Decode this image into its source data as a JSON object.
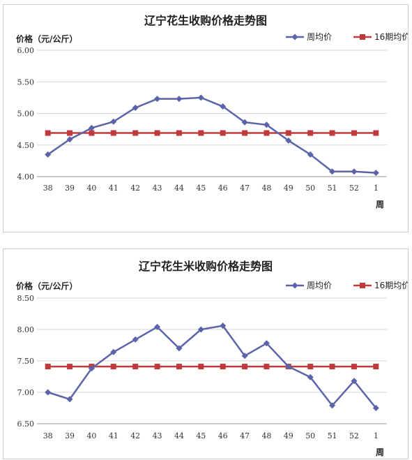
{
  "chart_data": [
    {
      "type": "line",
      "title": "辽宁花生收购价格走势图",
      "ylabel": "价格（元/公斤）",
      "xlabel": "周",
      "categories": [
        "38",
        "39",
        "40",
        "41",
        "42",
        "43",
        "44",
        "45",
        "46",
        "47",
        "48",
        "49",
        "50",
        "51",
        "52",
        "1"
      ],
      "ylim": [
        4.0,
        6.0
      ],
      "yticks": [
        "4.00",
        "4.50",
        "5.00",
        "5.50",
        "6.00"
      ],
      "grid": true,
      "legend_position": "top-right",
      "series": [
        {
          "name": "周均价",
          "color": "#5b64a8",
          "marker": "diamond",
          "values": [
            4.35,
            4.59,
            4.77,
            4.87,
            5.09,
            5.23,
            5.23,
            5.25,
            5.11,
            4.86,
            4.82,
            4.57,
            4.35,
            4.08,
            4.08,
            4.06
          ]
        },
        {
          "name": "16期均价",
          "color": "#c0393b",
          "marker": "square",
          "values": [
            4.69,
            4.69,
            4.69,
            4.69,
            4.69,
            4.69,
            4.69,
            4.69,
            4.69,
            4.69,
            4.69,
            4.69,
            4.69,
            4.69,
            4.69,
            4.69
          ]
        }
      ]
    },
    {
      "type": "line",
      "title": "辽宁花生米收购价格走势图",
      "ylabel": "价格（元/公斤）",
      "xlabel": "周",
      "categories": [
        "38",
        "39",
        "40",
        "41",
        "42",
        "43",
        "44",
        "45",
        "46",
        "47",
        "48",
        "49",
        "50",
        "51",
        "52",
        "1"
      ],
      "ylim": [
        6.5,
        8.5
      ],
      "yticks": [
        "6.50",
        "7.00",
        "7.50",
        "8.00",
        "8.50"
      ],
      "grid": true,
      "legend_position": "top-right",
      "series": [
        {
          "name": "周均价",
          "color": "#5b64a8",
          "marker": "diamond",
          "values": [
            7.0,
            6.89,
            7.38,
            7.64,
            7.84,
            8.04,
            7.7,
            8.0,
            8.06,
            7.58,
            7.78,
            7.41,
            7.24,
            6.79,
            7.18,
            6.75
          ]
        },
        {
          "name": "16期均价",
          "color": "#c0393b",
          "marker": "square",
          "values": [
            7.41,
            7.41,
            7.41,
            7.41,
            7.41,
            7.41,
            7.41,
            7.41,
            7.41,
            7.41,
            7.41,
            7.41,
            7.41,
            7.41,
            7.41,
            7.41
          ]
        }
      ]
    }
  ]
}
